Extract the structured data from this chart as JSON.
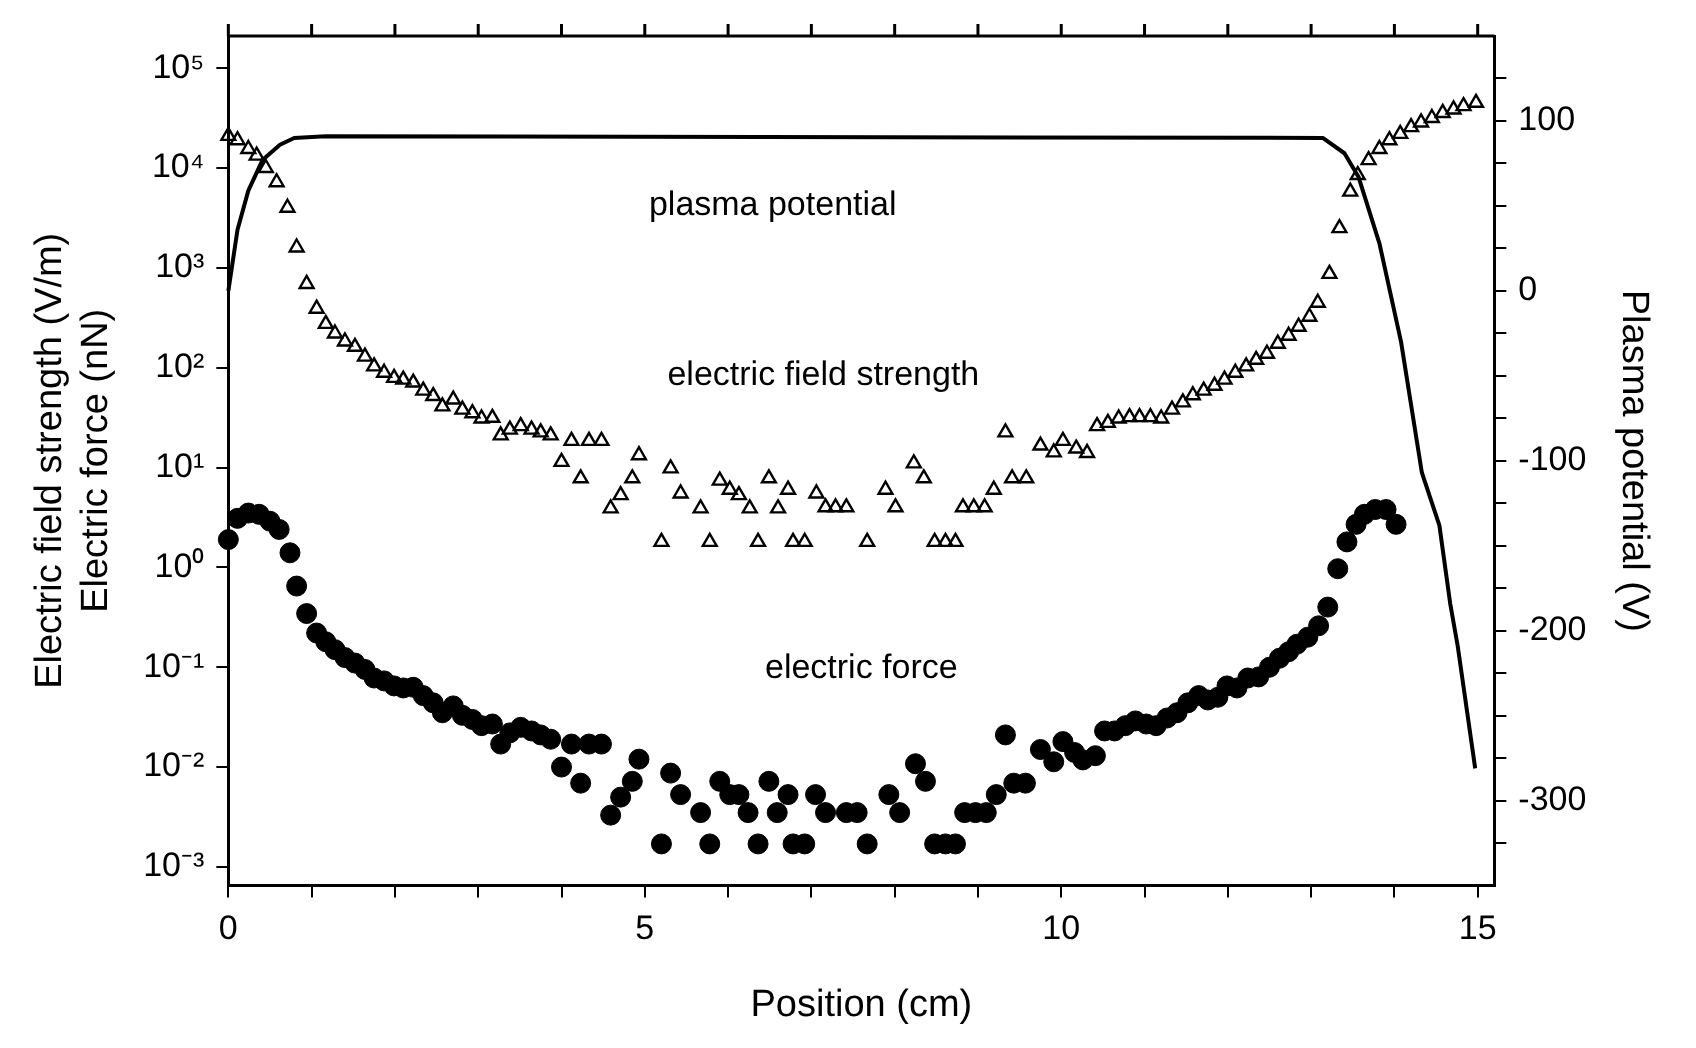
{
  "chart_data": {
    "type": "scatter",
    "xlabel": "Position (cm)",
    "ylabel": "Electric field strength (V/m)\nElectric force (nN)",
    "y2label": "Plasma potential (V)",
    "log": "y",
    "grid": false,
    "legend": false,
    "xlim": [
      0,
      15.2
    ],
    "xticks": [
      0,
      {
        "value": 1,
        "label": null
      },
      {
        "value": 2,
        "label": null
      },
      {
        "value": 3,
        "label": null
      },
      {
        "value": 4,
        "label": null
      },
      5,
      {
        "value": 6,
        "label": null
      },
      {
        "value": 7,
        "label": null
      },
      {
        "value": 8,
        "label": null
      },
      {
        "value": 9,
        "label": null
      },
      10,
      {
        "value": 11,
        "label": null
      },
      {
        "value": 12,
        "label": null
      },
      {
        "value": 13,
        "label": null
      },
      {
        "value": 14,
        "label": null
      },
      15
    ],
    "ylim": [
      0.00065,
      210000
    ],
    "yticks": [
      {
        "value": 0.001,
        "label": "10⁻³"
      },
      {
        "value": 0.01,
        "label": "10⁻²"
      },
      {
        "value": 0.1,
        "label": "10⁻¹"
      },
      {
        "value": 1,
        "label": "10⁰"
      },
      {
        "value": 10,
        "label": "10¹"
      },
      {
        "value": 100,
        "label": "10²"
      },
      {
        "value": 1000,
        "label": "10³"
      },
      {
        "value": 10000,
        "label": "10⁴"
      },
      {
        "value": 100000,
        "label": "10⁵"
      }
    ],
    "y2lim": [
      -350,
      150
    ],
    "y2ticks": [
      {
        "value": -325,
        "label": null
      },
      -300,
      {
        "value": -275,
        "label": null
      },
      {
        "value": -250,
        "label": null
      },
      {
        "value": -225,
        "label": null
      },
      -200,
      {
        "value": -175,
        "label": null
      },
      {
        "value": -150,
        "label": null
      },
      {
        "value": -125,
        "label": null
      },
      -100,
      {
        "value": -75,
        "label": null
      },
      {
        "value": -50,
        "label": null
      },
      {
        "value": -25,
        "label": null
      },
      0,
      {
        "value": 25,
        "label": null
      },
      {
        "value": 50,
        "label": null
      },
      {
        "value": 75,
        "label": null
      },
      100,
      {
        "value": 125,
        "label": null
      }
    ],
    "series": [
      {
        "name": "plasma potential",
        "type": "line",
        "axis": "y2",
        "marker": "none",
        "line_style": "solid",
        "color": "#000000",
        "x": [
          0,
          0.11,
          0.24,
          0.41,
          0.62,
          0.79,
          1.17,
          13.14,
          13.4,
          13.57,
          13.82,
          14.08,
          14.33,
          14.54,
          14.67,
          14.76,
          14.97
        ],
        "values": [
          0,
          36,
          59,
          77,
          86,
          90,
          91,
          90,
          81,
          67,
          28,
          -30,
          -107,
          -138,
          -184,
          -209,
          -281
        ]
      },
      {
        "name": "electric field strength",
        "type": "scatter",
        "marker": "triangle",
        "color": "#000000",
        "x": [
          0,
          0.11,
          0.24,
          0.34,
          0.45,
          0.58,
          0.71,
          0.82,
          0.94,
          1.06,
          1.17,
          1.28,
          1.4,
          1.52,
          1.64,
          1.75,
          1.87,
          1.99,
          2.1,
          2.22,
          2.34,
          2.46,
          2.57,
          2.7,
          2.81,
          2.93,
          3.04,
          3.17,
          3.27,
          3.38,
          3.51,
          3.64,
          3.75,
          3.87,
          4.0,
          4.12,
          4.23,
          4.33,
          4.48,
          4.59,
          4.71,
          4.85,
          4.93,
          5.2,
          5.31,
          5.43,
          5.67,
          5.78,
          5.9,
          6.02,
          6.13,
          6.26,
          6.36,
          6.49,
          6.6,
          6.72,
          6.78,
          6.92,
          7.06,
          7.17,
          7.29,
          7.42,
          7.67,
          7.89,
          8.01,
          8.23,
          8.35,
          8.48,
          8.61,
          8.73,
          8.82,
          8.95,
          9.08,
          9.19,
          9.33,
          9.41,
          9.58,
          9.75,
          9.91,
          10.02,
          10.18,
          10.31,
          10.43,
          10.56,
          10.69,
          10.82,
          10.94,
          11.07,
          11.2,
          11.33,
          11.46,
          11.58,
          11.71,
          11.84,
          11.96,
          12.09,
          12.22,
          12.34,
          12.47,
          12.6,
          12.73,
          12.85,
          12.98,
          13.08,
          13.22,
          13.34,
          13.47,
          13.56,
          13.69,
          13.82,
          13.94,
          14.07,
          14.2,
          14.32,
          14.45,
          14.58,
          14.71,
          14.83,
          14.98
        ],
        "values": [
          21000,
          19000,
          15500,
          13300,
          10000,
          7200,
          4000,
          1600,
          690,
          390,
          275,
          220,
          183,
          162,
          129,
          103,
          89,
          79,
          76,
          71,
          59,
          52,
          41,
          48,
          38,
          35,
          31,
          31.5,
          21,
          24,
          26,
          24,
          22.5,
          21,
          11.4,
          18.5,
          7.8,
          18.5,
          18.5,
          3.9,
          5.3,
          7.8,
          13.3,
          1.8,
          9.8,
          5.5,
          3.9,
          1.8,
          7.4,
          6,
          5.3,
          3.9,
          1.8,
          7.8,
          3.9,
          6,
          1.8,
          1.8,
          5.5,
          4,
          4,
          4,
          1.8,
          6,
          4,
          11,
          7.8,
          1.8,
          1.8,
          1.8,
          4,
          4,
          4,
          6,
          22.5,
          7.8,
          7.8,
          16.6,
          14.2,
          18.5,
          15.5,
          14,
          26,
          28,
          31,
          32,
          32,
          32,
          31,
          38,
          45,
          53,
          59,
          66,
          76,
          89,
          103,
          120,
          138,
          174,
          209,
          257,
          324,
          447,
          870,
          2500,
          5800,
          8500,
          12000,
          15500,
          19000,
          22000,
          25700,
          28600,
          31700,
          35600,
          38600,
          41700,
          45000
        ]
      },
      {
        "name": "electric force",
        "type": "scatter",
        "marker": "circle",
        "color": "#000000",
        "x": [
          0,
          0.11,
          0.24,
          0.37,
          0.5,
          0.61,
          0.74,
          0.82,
          0.94,
          1.06,
          1.17,
          1.28,
          1.4,
          1.52,
          1.64,
          1.75,
          1.87,
          1.99,
          2.1,
          2.22,
          2.34,
          2.46,
          2.57,
          2.7,
          2.81,
          2.93,
          3.04,
          3.17,
          3.27,
          3.38,
          3.51,
          3.64,
          3.75,
          3.87,
          4.0,
          4.12,
          4.23,
          4.33,
          4.48,
          4.59,
          4.71,
          4.85,
          4.93,
          5.2,
          5.31,
          5.43,
          5.67,
          5.78,
          5.9,
          6.02,
          6.13,
          6.24,
          6.36,
          6.49,
          6.59,
          6.72,
          6.78,
          6.92,
          7.05,
          7.17,
          7.42,
          7.55,
          7.67,
          7.93,
          8.06,
          8.25,
          8.37,
          8.48,
          8.61,
          8.73,
          8.84,
          8.97,
          9.1,
          9.22,
          9.33,
          9.43,
          9.57,
          9.75,
          9.91,
          10.02,
          10.16,
          10.26,
          10.41,
          10.52,
          10.64,
          10.77,
          10.89,
          11.02,
          11.14,
          11.27,
          11.39,
          11.52,
          11.65,
          11.76,
          11.88,
          11.99,
          12.11,
          12.24,
          12.37,
          12.5,
          12.62,
          12.73,
          12.83,
          12.96,
          13.09,
          13.2,
          13.32,
          13.43,
          13.54,
          13.64,
          13.77,
          13.9,
          14.02
        ],
        "values": [
          1.9,
          3.1,
          3.5,
          3.4,
          2.9,
          2.4,
          1.4,
          0.65,
          0.345,
          0.22,
          0.18,
          0.15,
          0.125,
          0.11,
          0.095,
          0.078,
          0.073,
          0.065,
          0.062,
          0.063,
          0.052,
          0.044,
          0.035,
          0.041,
          0.033,
          0.03,
          0.026,
          0.027,
          0.017,
          0.022,
          0.025,
          0.023,
          0.021,
          0.019,
          0.01,
          0.017,
          0.0069,
          0.017,
          0.017,
          0.0033,
          0.005,
          0.0072,
          0.012,
          0.0017,
          0.0087,
          0.0053,
          0.0035,
          0.0017,
          0.0072,
          0.0053,
          0.0053,
          0.0035,
          0.0017,
          0.0072,
          0.0035,
          0.0053,
          0.0017,
          0.0017,
          0.0053,
          0.0035,
          0.0035,
          0.0035,
          0.0017,
          0.0053,
          0.0035,
          0.0108,
          0.0072,
          0.0017,
          0.0017,
          0.0017,
          0.0035,
          0.0035,
          0.0035,
          0.0053,
          0.021,
          0.0069,
          0.0069,
          0.015,
          0.0113,
          0.018,
          0.014,
          0.0118,
          0.013,
          0.023,
          0.023,
          0.026,
          0.029,
          0.027,
          0.026,
          0.031,
          0.035,
          0.044,
          0.052,
          0.047,
          0.05,
          0.065,
          0.062,
          0.078,
          0.08,
          0.1,
          0.123,
          0.143,
          0.17,
          0.2,
          0.26,
          0.4,
          0.97,
          1.8,
          2.7,
          3.4,
          3.8,
          3.8,
          2.7
        ]
      }
    ]
  }
}
